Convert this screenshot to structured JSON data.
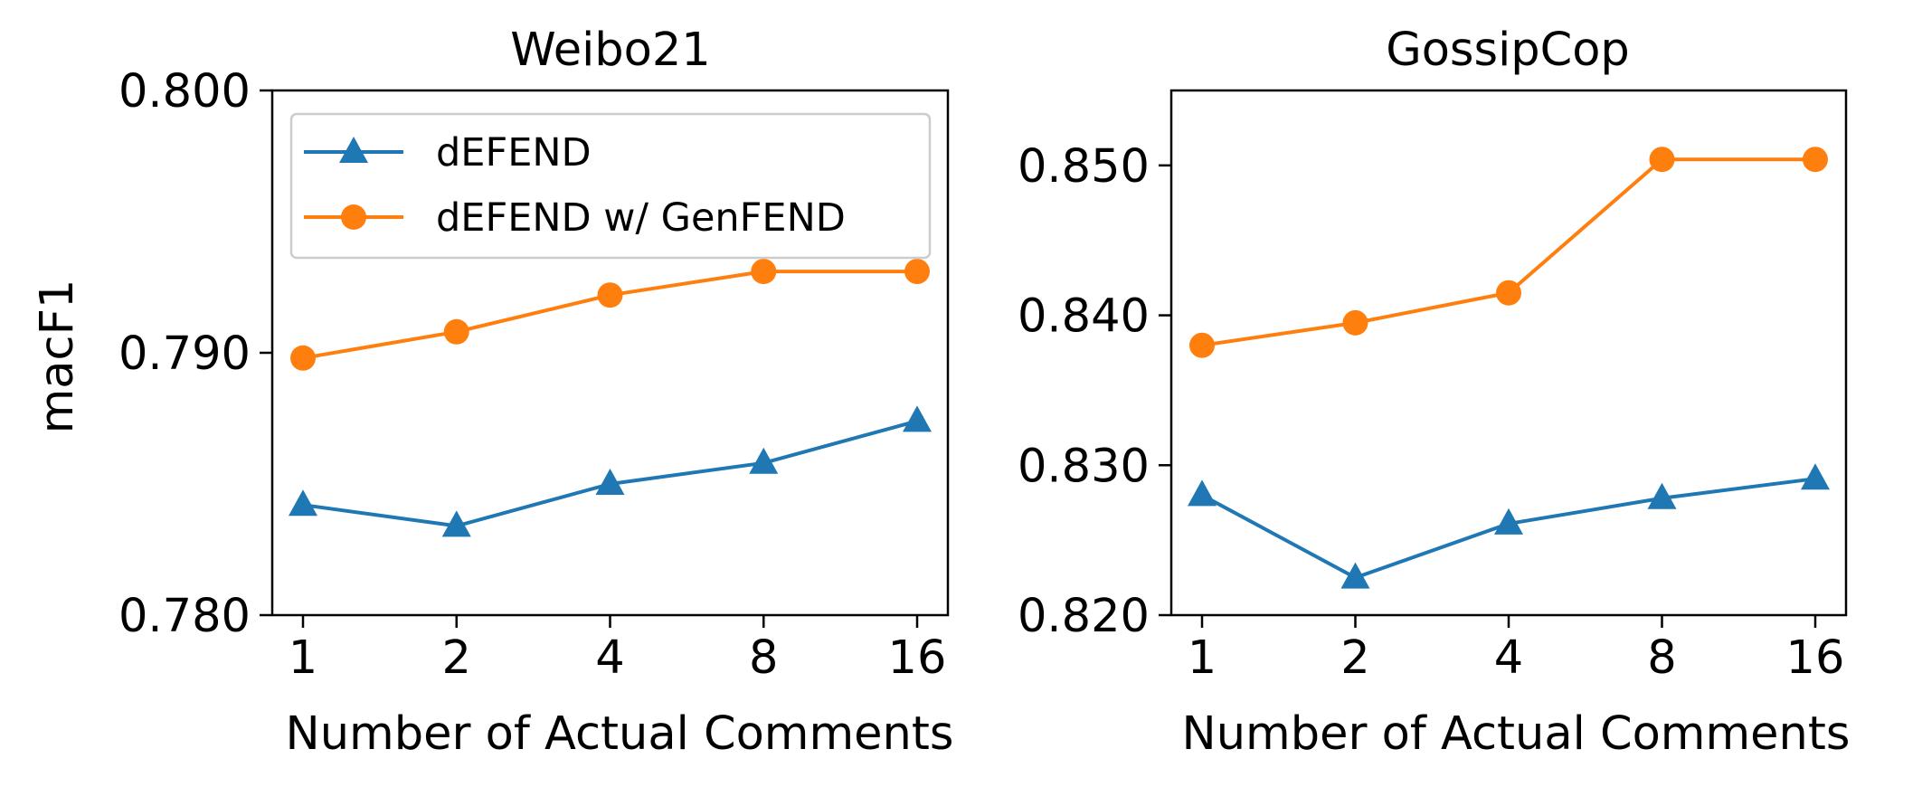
{
  "chart_data": [
    {
      "type": "line",
      "title": "Weibo21",
      "xlabel": "Number of Actual Comments",
      "ylabel": "macF1",
      "categories": [
        "1",
        "2",
        "4",
        "8",
        "16"
      ],
      "ylim": [
        0.78,
        0.8
      ],
      "yticks": [
        "0.780",
        "0.790",
        "0.800"
      ],
      "grid": false,
      "legend_position": "top-left",
      "series": [
        {
          "name": "dEFEND",
          "color": "#1f77b4",
          "marker": "triangle",
          "values": [
            0.7842,
            0.7834,
            0.785,
            0.7858,
            0.7874
          ]
        },
        {
          "name": "dEFEND w/ GenFEND",
          "color": "#ff7f0e",
          "marker": "circle",
          "values": [
            0.7898,
            0.7908,
            0.7922,
            0.7931,
            0.7931
          ]
        }
      ]
    },
    {
      "type": "line",
      "title": "GossipCop",
      "xlabel": "Number of Actual Comments",
      "ylabel": "",
      "categories": [
        "1",
        "2",
        "4",
        "8",
        "16"
      ],
      "ylim": [
        0.82,
        0.855
      ],
      "yticks": [
        "0.820",
        "0.830",
        "0.840",
        "0.850"
      ],
      "grid": false,
      "legend_position": "none",
      "series": [
        {
          "name": "dEFEND",
          "color": "#1f77b4",
          "marker": "triangle",
          "values": [
            0.828,
            0.8225,
            0.8261,
            0.8278,
            0.8291
          ]
        },
        {
          "name": "dEFEND w/ GenFEND",
          "color": "#ff7f0e",
          "marker": "circle",
          "values": [
            0.838,
            0.8395,
            0.8415,
            0.8504,
            0.8504
          ]
        }
      ]
    }
  ]
}
